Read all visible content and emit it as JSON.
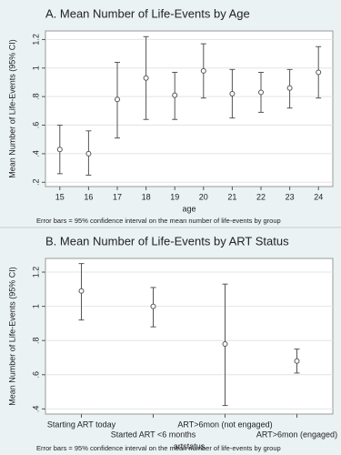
{
  "chart_data": [
    {
      "type": "errorbar",
      "title": "A. Mean Number of Life-Events by Age",
      "x_label": "age",
      "y_label": "Mean Number of Life-Events (95% CI)",
      "note": "Error bars = 95% confidence interval on the mean number of life-events by group",
      "x": [
        15,
        16,
        17,
        18,
        19,
        20,
        21,
        22,
        23,
        24
      ],
      "values": [
        0.43,
        0.4,
        0.78,
        0.93,
        0.81,
        0.98,
        0.82,
        0.83,
        0.86,
        0.97
      ],
      "lower": [
        0.26,
        0.25,
        0.51,
        0.64,
        0.64,
        0.79,
        0.65,
        0.69,
        0.72,
        0.79
      ],
      "upper": [
        0.6,
        0.56,
        1.04,
        1.22,
        0.97,
        1.17,
        0.99,
        0.97,
        0.99,
        1.15
      ],
      "xlim": [
        14.5,
        24.5
      ],
      "xticks": [
        15,
        16,
        17,
        18,
        19,
        20,
        21,
        22,
        23,
        24
      ],
      "ylim": [
        0.17,
        1.26
      ],
      "yticks": [
        {
          "value": 0.2,
          "label": ".2"
        },
        {
          "value": 0.4,
          "label": ".4"
        },
        {
          "value": 0.6,
          "label": ".6"
        },
        {
          "value": 0.8,
          "label": ".8"
        },
        1,
        {
          "value": 1.2,
          "label": "1.2"
        }
      ],
      "grid": true,
      "color": "#555555"
    },
    {
      "type": "errorbar",
      "title": "B. Mean Number of Life-Events by ART Status",
      "x_label": "artstatus",
      "y_label": "Mean Number of Life-Events (95% CI)",
      "note": "Error bars = 95% confidence interval on the mean number of life-events by group",
      "categories": [
        "Starting ART today",
        "Started ART <6 months",
        "ART>6mon (not engaged)",
        "ART>6mon (engaged)"
      ],
      "values": [
        1.09,
        1.0,
        0.78,
        0.68
      ],
      "lower": [
        0.92,
        0.88,
        0.42,
        0.61
      ],
      "upper": [
        1.25,
        1.11,
        1.13,
        0.75
      ],
      "ylim": [
        0.37,
        1.28
      ],
      "yticks": [
        {
          "value": 0.4,
          "label": ".4"
        },
        {
          "value": 0.6,
          "label": ".6"
        },
        {
          "value": 0.8,
          "label": ".8"
        },
        1,
        {
          "value": 1.2,
          "label": "1.2"
        }
      ],
      "grid": true,
      "color": "#555555"
    }
  ]
}
